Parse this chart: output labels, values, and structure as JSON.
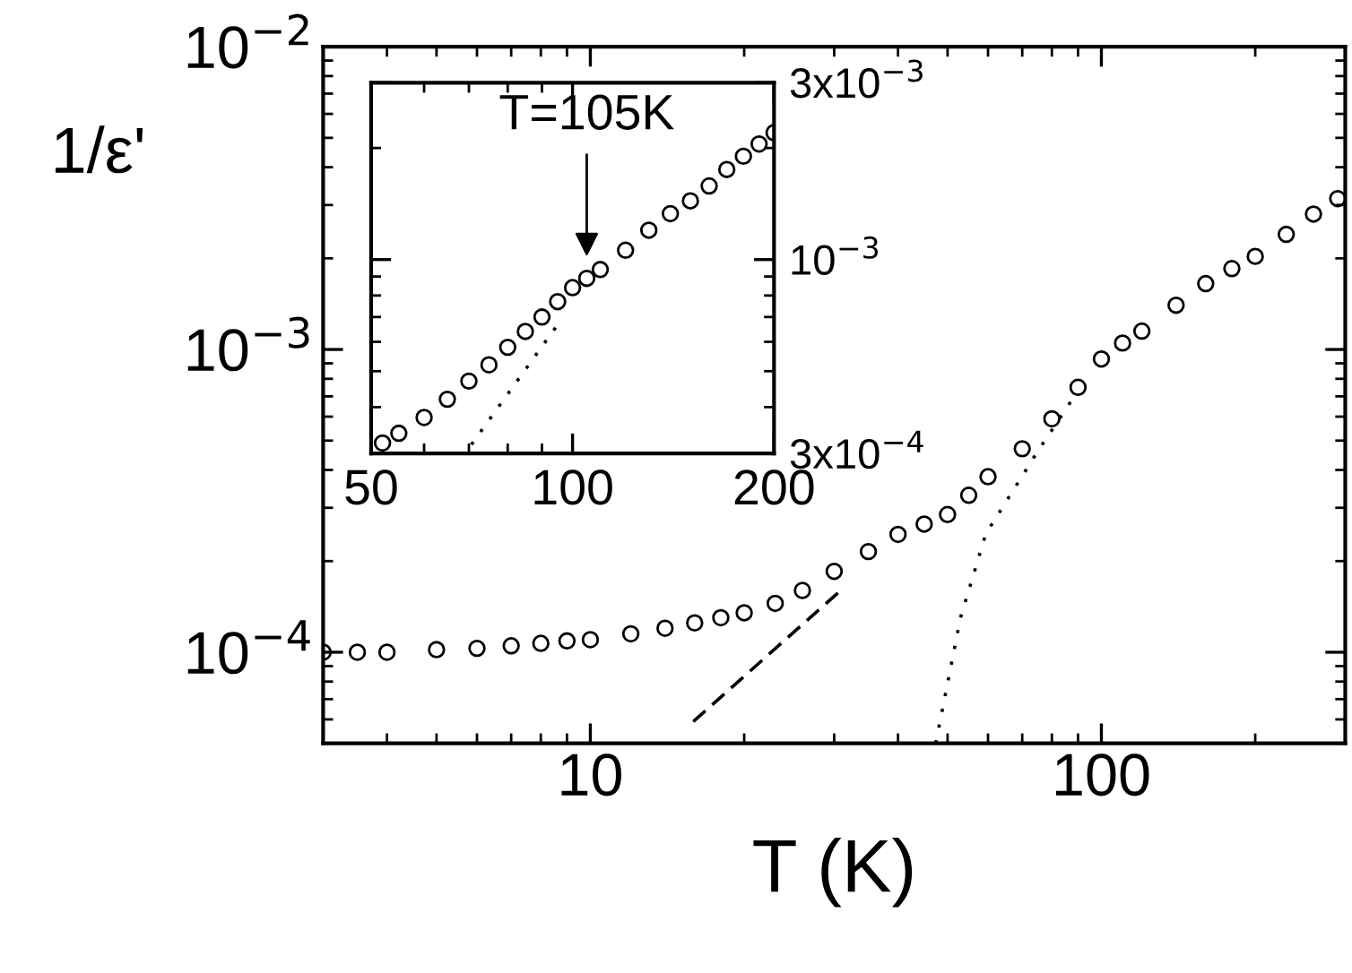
{
  "chart_data": [
    {
      "type": "scatter",
      "xlabel": "T (K)",
      "ylabel": "1/ε'",
      "xlim": [
        3,
        300
      ],
      "ylim": [
        5e-05,
        0.01
      ],
      "log": "xy",
      "grid": false,
      "legend": false,
      "xticks": [
        10,
        100
      ],
      "yticks": [
        {
          "value": 0.0001,
          "label": "10$^{−4}$"
        },
        {
          "value": 0.001,
          "label": "10$^{−3}$"
        },
        {
          "value": 0.01,
          "label": "10$^{−2}$"
        }
      ],
      "series": [
        {
          "marker": "circle",
          "color": "#000000",
          "x": [
            3,
            3.5,
            4,
            5,
            6,
            7,
            8,
            9,
            10,
            12,
            14,
            16,
            18,
            20,
            23,
            26,
            30,
            35,
            40,
            45,
            50,
            55,
            60,
            70,
            80,
            90,
            100,
            110,
            120,
            140,
            160,
            180,
            200,
            230,
            260,
            290
          ],
          "values": [
            0.0001,
            0.0001,
            0.0001,
            0.000102,
            0.000103,
            0.000105,
            0.000107,
            0.000109,
            0.00011,
            0.000115,
            0.00012,
            0.000125,
            0.00013,
            0.000135,
            0.000145,
            0.00016,
            0.000185,
            0.000215,
            0.000245,
            0.000265,
            0.000285,
            0.00033,
            0.00038,
            0.00047,
            0.00059,
            0.00075,
            0.00093,
            0.00105,
            0.00115,
            0.0014,
            0.00165,
            0.00185,
            0.00203,
            0.0024,
            0.0028,
            0.00315
          ]
        },
        {
          "type": "line",
          "color": "#000000",
          "line_style": "dashed",
          "x": [
            15.9,
            30.5
          ],
          "values": [
            5.9e-05,
            0.000157
          ]
        },
        {
          "type": "line",
          "color": "#000000",
          "line_style": "dotted",
          "x": [
            47.4,
            53,
            59.4,
            75,
            87
          ],
          "values": [
            5e-05,
            0.00013,
            0.000246,
            0.00046,
            0.00067
          ]
        }
      ]
    },
    {
      "type": "scatter",
      "xlim": [
        50,
        200
      ],
      "ylim": [
        0.0003,
        0.003
      ],
      "log": "xy",
      "grid": false,
      "legend": false,
      "xticks": [
        50,
        100,
        200
      ],
      "yticks": [
        {
          "value": 0.0003,
          "label": "3x10$^{−4}$"
        },
        {
          "value": 0.001,
          "label": "10$^{−3}$"
        },
        {
          "value": 0.003,
          "label": "3x10$^{−3}$"
        }
      ],
      "annotations": [
        {
          "text": "T=105K",
          "x": 105,
          "y": 0.0009
        }
      ],
      "series": [
        {
          "marker": "circle",
          "color": "#000000",
          "x": [
            52,
            55,
            60,
            65,
            70,
            75,
            80,
            85,
            90,
            95,
            100,
            105,
            110,
            120,
            130,
            140,
            150,
            160,
            170,
            180,
            190,
            200
          ],
          "values": [
            0.00032,
            0.00034,
            0.000375,
            0.00042,
            0.00047,
            0.00052,
            0.00058,
            0.00064,
            0.0007,
            0.00077,
            0.00084,
            0.00089,
            0.00094,
            0.00106,
            0.0012,
            0.00133,
            0.00144,
            0.00158,
            0.00175,
            0.0019,
            0.00205,
            0.0022
          ]
        },
        {
          "type": "line",
          "color": "#000000",
          "line_style": "dotted",
          "x": [
            70.6,
            94.3
          ],
          "values": [
            0.000317,
            0.000655
          ]
        }
      ]
    }
  ]
}
